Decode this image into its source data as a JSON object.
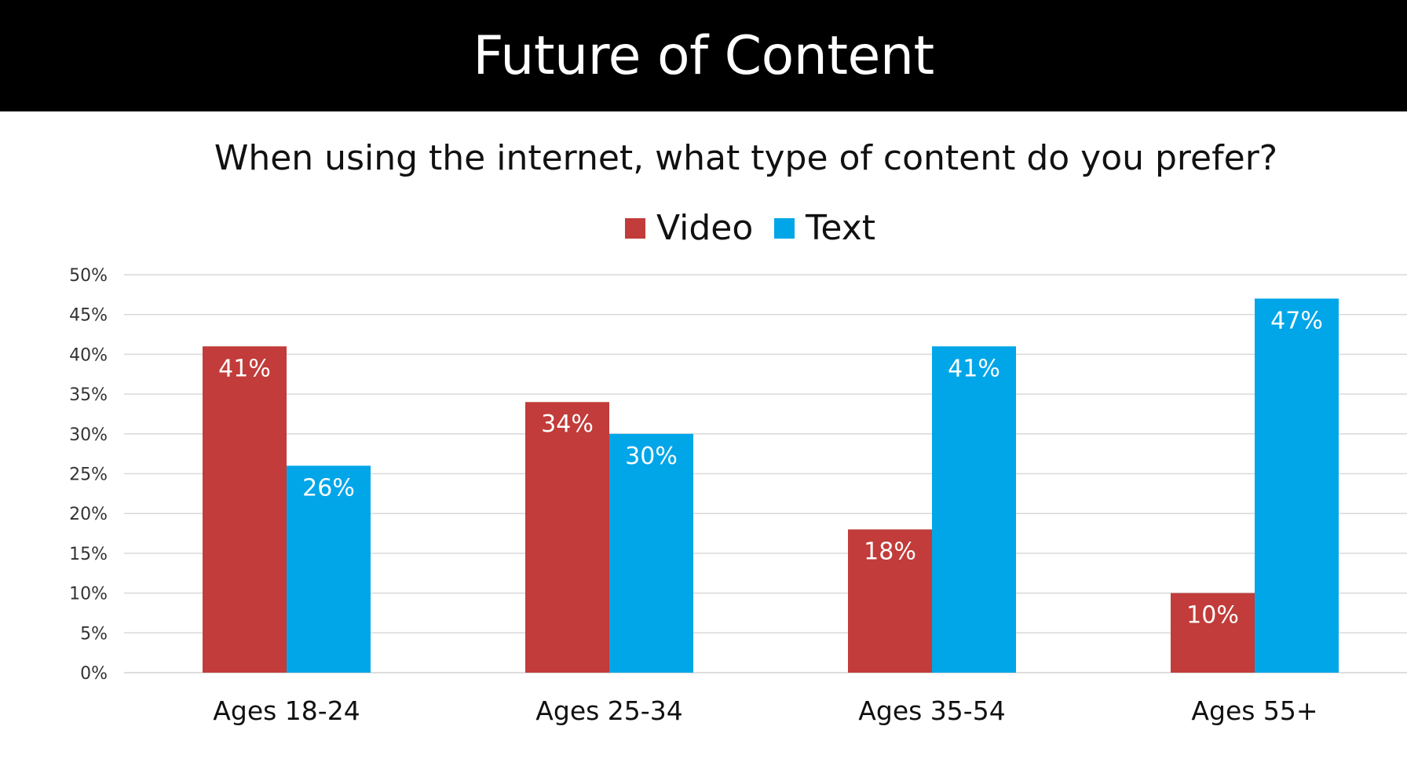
{
  "page": {
    "title": "Future of Content"
  },
  "chart_data": {
    "type": "bar",
    "title": "When using the internet, what type of content do you prefer?",
    "categories": [
      "Ages 18-24",
      "Ages 25-34",
      "Ages 35-54",
      "Ages 55+"
    ],
    "series": [
      {
        "name": "Video",
        "values": [
          41,
          34,
          18,
          10
        ],
        "color": "#c13c3a"
      },
      {
        "name": "Text",
        "values": [
          26,
          30,
          41,
          47
        ],
        "color": "#00a6e8"
      }
    ],
    "value_format": "percent",
    "ylim": [
      0,
      50
    ],
    "ytick_step": 5,
    "ytick_labels": [
      "0%",
      "5%",
      "10%",
      "15%",
      "20%",
      "25%",
      "30%",
      "35%",
      "40%",
      "45%",
      "50%"
    ],
    "data_labels": [
      [
        "41%",
        "34%",
        "18%",
        "10%"
      ],
      [
        "26%",
        "30%",
        "41%",
        "47%"
      ]
    ],
    "grid": true,
    "legend_position": "top-center",
    "xlabel": "",
    "ylabel": ""
  }
}
